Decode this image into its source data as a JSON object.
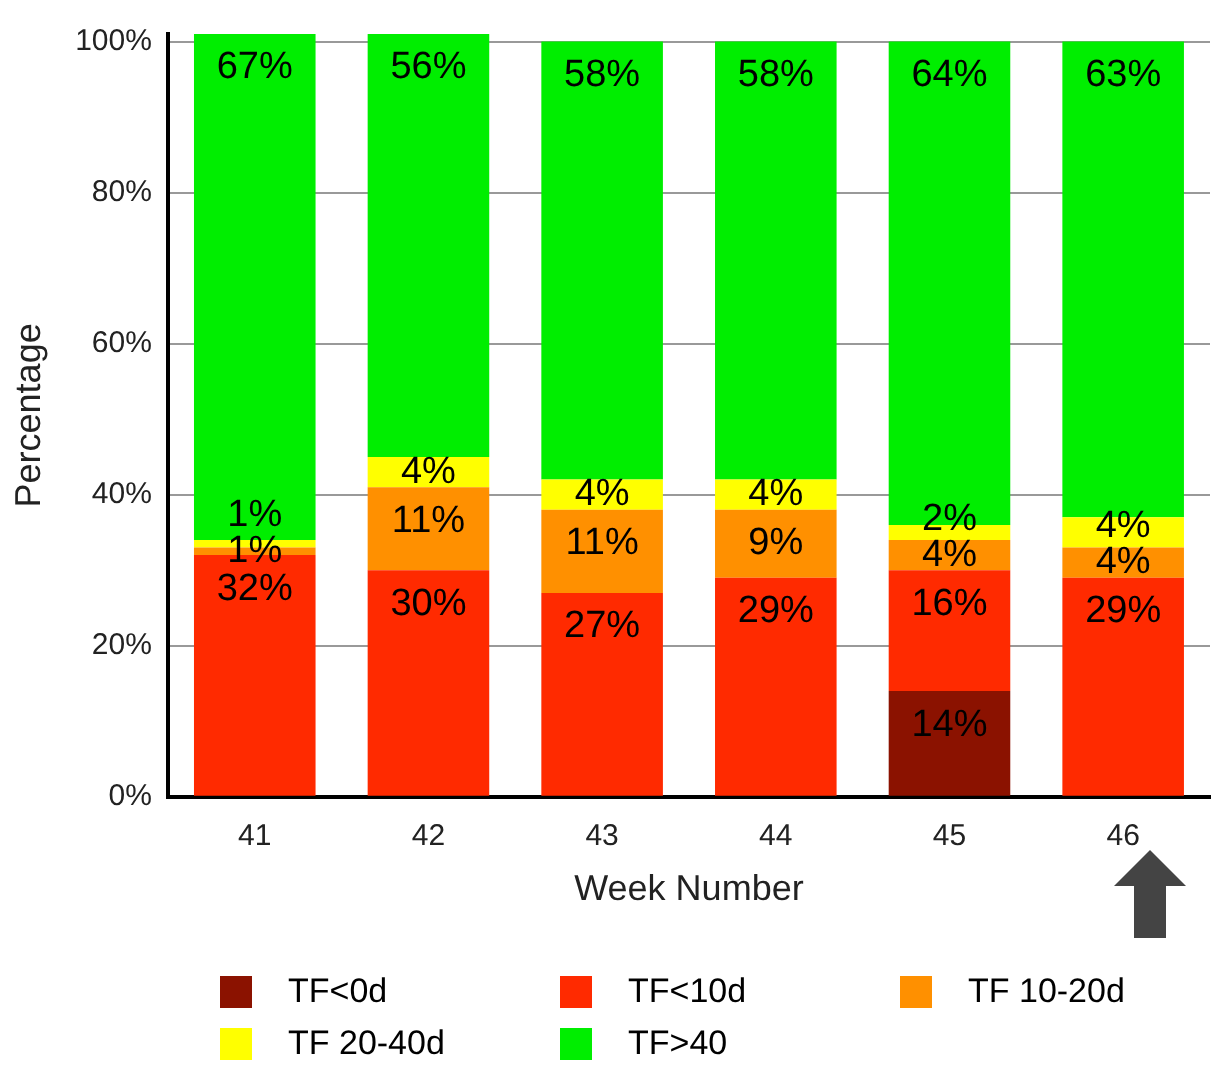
{
  "chart_data": {
    "type": "bar",
    "stacked": true,
    "xlabel": "Week Number",
    "ylabel": "Percentage",
    "categories": [
      "41",
      "42",
      "43",
      "44",
      "45",
      "46"
    ],
    "series": [
      {
        "name": "TF<0d",
        "color": "#8b1200",
        "values": [
          null,
          null,
          null,
          null,
          14,
          null
        ],
        "value_labels": [
          null,
          null,
          null,
          null,
          "14%",
          null
        ]
      },
      {
        "name": "TF<10d",
        "color": "#ff2a00",
        "values": [
          32,
          30,
          27,
          29,
          16,
          29
        ],
        "value_labels": [
          "32%",
          "30%",
          "27%",
          "29%",
          "16%",
          "29%"
        ]
      },
      {
        "name": "TF 10-20d",
        "color": "#ff9000",
        "values": [
          1,
          11,
          11,
          9,
          4,
          4
        ],
        "value_labels": [
          "1%",
          "11%",
          "11%",
          "9%",
          "4%",
          "4%"
        ]
      },
      {
        "name": "TF 20-40d",
        "color": "#ffff00",
        "values": [
          1,
          4,
          4,
          4,
          2,
          4
        ],
        "value_labels": [
          "1%",
          "4%",
          "4%",
          "4%",
          "2%",
          "4%"
        ]
      },
      {
        "name": "TF>40",
        "color": "#00ee00",
        "values": [
          67,
          56,
          58,
          58,
          64,
          63
        ],
        "value_labels": [
          "67%",
          "56%",
          "58%",
          "58%",
          "64%",
          "63%"
        ]
      }
    ],
    "ylim": [
      0,
      101
    ],
    "yticks": [
      {
        "value": 0,
        "label": "0%"
      },
      {
        "value": 20,
        "label": "20%"
      },
      {
        "value": 40,
        "label": "40%"
      },
      {
        "value": 60,
        "label": "60%"
      },
      {
        "value": 80,
        "label": "80%"
      },
      {
        "value": 100,
        "label": "100%"
      }
    ],
    "grid": "y",
    "legend": "bottom"
  }
}
